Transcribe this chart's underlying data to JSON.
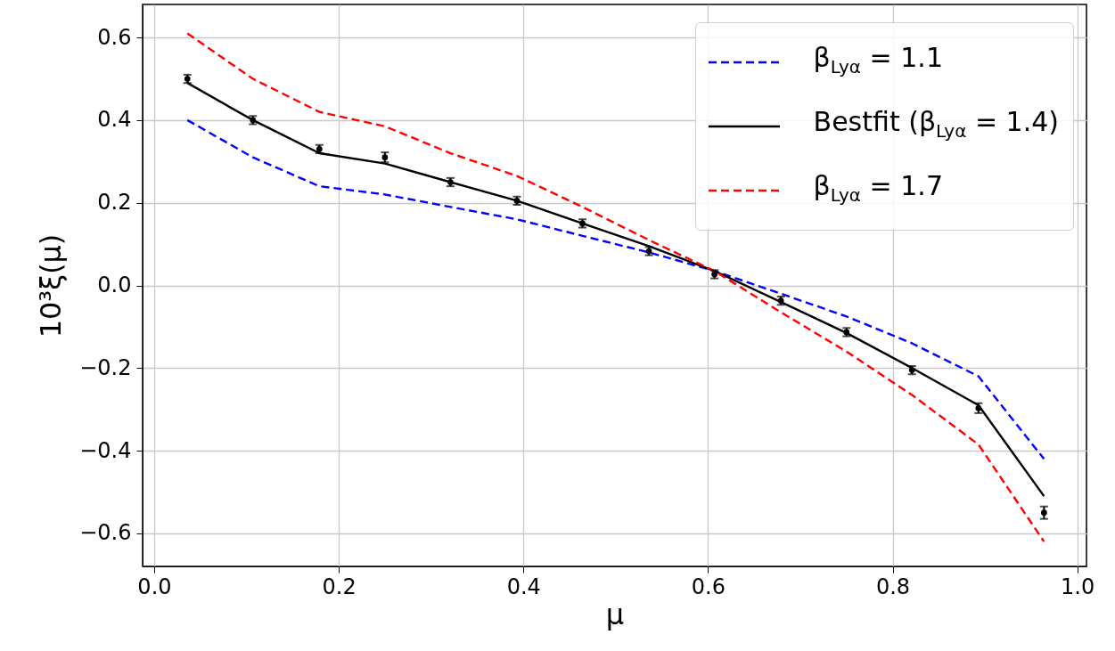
{
  "chart_data": {
    "type": "line",
    "xlabel": "μ",
    "ylabel": "10³ξ(μ)",
    "xlim": [
      -0.0125,
      1.01
    ],
    "ylim": [
      -0.68,
      0.68
    ],
    "xticks": [
      {
        "value": 0,
        "label": "0.0"
      },
      {
        "value": 0.2,
        "label": "0.2"
      },
      {
        "value": 0.4,
        "label": "0.4"
      },
      {
        "value": 0.6,
        "label": "0.6"
      },
      {
        "value": 0.8,
        "label": "0.8"
      },
      {
        "value": 1,
        "label": "1.0"
      }
    ],
    "yticks": [
      {
        "value": -0.6,
        "label": "−0.6"
      },
      {
        "value": -0.4,
        "label": "−0.4"
      },
      {
        "value": -0.2,
        "label": "−0.2"
      },
      {
        "value": 0,
        "label": "0.0"
      },
      {
        "value": 0.2,
        "label": "0.2"
      },
      {
        "value": 0.4,
        "label": "0.4"
      },
      {
        "value": 0.6,
        "label": "0.6"
      }
    ],
    "x": [
      0.036,
      0.107,
      0.179,
      0.25,
      0.321,
      0.393,
      0.464,
      0.536,
      0.607,
      0.679,
      0.75,
      0.821,
      0.893,
      0.964
    ],
    "grid": true,
    "legend": "top right",
    "series": [
      {
        "name": "β$_{Lyα}$ = 1.1",
        "color": "#0000ff",
        "line_style": "dashed",
        "values": [
          0.4,
          0.31,
          0.24,
          0.22,
          0.19,
          0.16,
          0.12,
          0.08,
          0.035,
          -0.02,
          -0.075,
          -0.14,
          -0.22,
          -0.42
        ]
      },
      {
        "name": "Bestfit (β$_{Lyα}$ = 1.4)",
        "color": "#000000",
        "line_style": "solid",
        "values": [
          0.49,
          0.4,
          0.32,
          0.295,
          0.25,
          0.205,
          0.15,
          0.095,
          0.035,
          -0.04,
          -0.115,
          -0.2,
          -0.29,
          -0.51
        ]
      },
      {
        "name": "β$_{Lyα}$ = 1.7",
        "color": "#ff0000",
        "line_style": "dashed",
        "values": [
          0.61,
          0.5,
          0.42,
          0.385,
          0.32,
          0.265,
          0.19,
          0.11,
          0.035,
          -0.065,
          -0.16,
          -0.265,
          -0.385,
          -0.62
        ]
      },
      {
        "type": "scatter",
        "color": "#000000",
        "marker": "circle",
        "values": [
          0.5,
          0.4,
          0.33,
          0.31,
          0.25,
          0.205,
          0.15,
          0.083,
          0.027,
          -0.037,
          -0.113,
          -0.205,
          -0.297,
          -0.55
        ],
        "errors": [
          0.01,
          0.01,
          0.01,
          0.012,
          0.01,
          0.01,
          0.01,
          0.01,
          0.01,
          0.01,
          0.01,
          0.01,
          0.012,
          0.015
        ]
      }
    ]
  }
}
